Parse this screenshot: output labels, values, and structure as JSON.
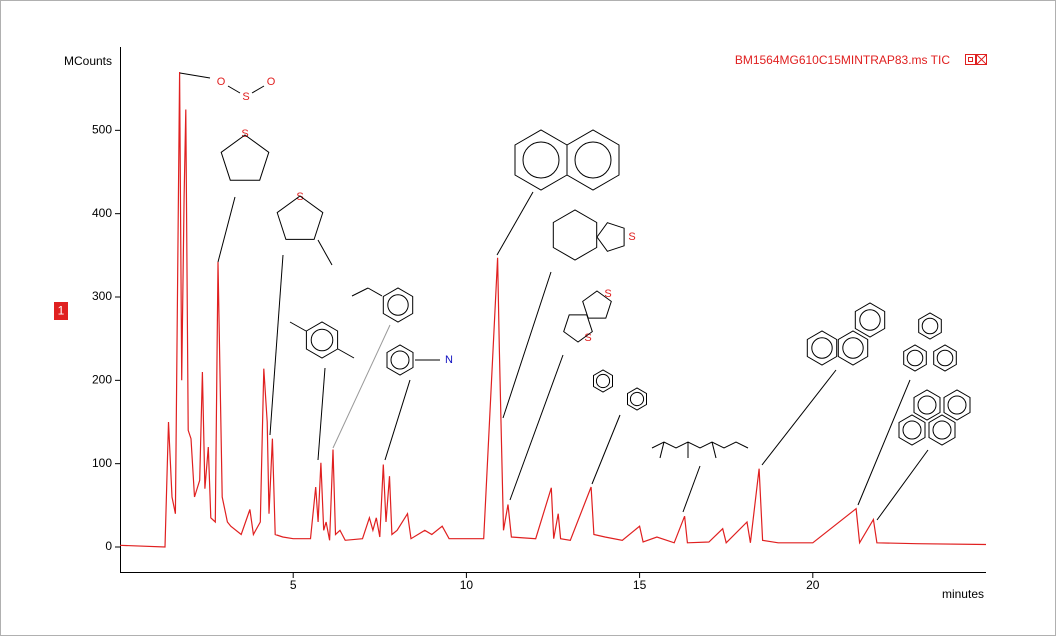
{
  "chart_data": {
    "type": "line",
    "title": "BM1564MG610C15MINTRAP83.ms TIC",
    "y_label": "MCounts",
    "x_label": "minutes",
    "marker_label": "1",
    "color": "#e02020",
    "xlim": [
      0,
      25
    ],
    "xticks": [
      5,
      10,
      15,
      20
    ],
    "ylim": [
      -30,
      600
    ],
    "yticks": [
      0,
      100,
      200,
      300,
      400,
      500
    ],
    "x": [
      0,
      1.3,
      1.4,
      1.5,
      1.6,
      1.72,
      1.78,
      1.85,
      1.9,
      1.97,
      2.05,
      2.15,
      2.3,
      2.38,
      2.45,
      2.55,
      2.62,
      2.75,
      2.83,
      2.95,
      3.1,
      3.2,
      3.5,
      3.75,
      3.85,
      4.05,
      4.15,
      4.25,
      4.3,
      4.4,
      4.48,
      4.7,
      5.0,
      5.5,
      5.65,
      5.72,
      5.8,
      5.88,
      5.95,
      6.05,
      6.15,
      6.22,
      6.35,
      6.5,
      7.0,
      7.2,
      7.3,
      7.4,
      7.5,
      7.6,
      7.68,
      7.78,
      7.85,
      8.0,
      8.3,
      8.4,
      8.8,
      9.0,
      9.3,
      9.5,
      10.0,
      10.5,
      10.9,
      10.95,
      11.0,
      11.07,
      11.2,
      11.3,
      12.0,
      12.45,
      12.52,
      12.65,
      12.72,
      13.0,
      13.6,
      13.68,
      14.0,
      14.5,
      15.0,
      15.1,
      15.5,
      16.0,
      16.3,
      16.38,
      17.0,
      17.4,
      17.5,
      18.1,
      18.2,
      18.45,
      18.55,
      19.0,
      20.0,
      21.25,
      21.35,
      21.75,
      21.85,
      23,
      25
    ],
    "values": [
      2,
      0,
      150,
      60,
      40,
      570,
      200,
      420,
      525,
      140,
      130,
      60,
      80,
      210,
      70,
      120,
      35,
      30,
      342,
      60,
      30,
      25,
      15,
      45,
      15,
      30,
      214,
      150,
      40,
      130,
      15,
      12,
      10,
      10,
      72,
      30,
      101,
      20,
      30,
      8,
      117,
      15,
      20,
      8,
      10,
      35,
      20,
      35,
      12,
      99,
      30,
      85,
      15,
      20,
      40,
      10,
      20,
      15,
      25,
      10,
      10,
      10,
      347,
      240,
      150,
      20,
      51,
      12,
      10,
      71,
      10,
      40,
      10,
      8,
      72,
      15,
      12,
      8,
      25,
      6,
      12,
      5,
      37,
      5,
      6,
      22,
      5,
      30,
      5,
      94,
      8,
      5,
      5,
      46,
      5,
      33,
      5,
      4,
      3
    ],
    "atom_labels": [
      "O",
      "S",
      "O",
      "S",
      "S",
      "N",
      "S",
      "S",
      "S"
    ]
  }
}
